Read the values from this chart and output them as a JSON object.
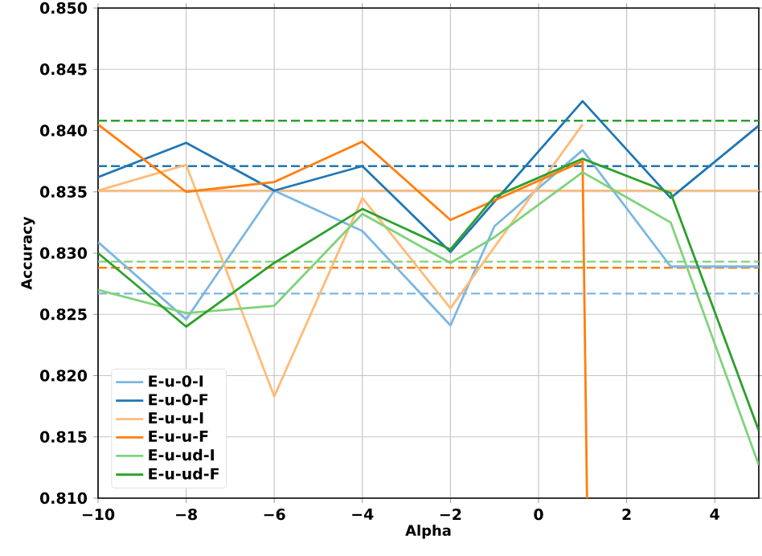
{
  "chart_data": {
    "type": "line",
    "xlabel": "Alpha",
    "ylabel": "Accuracy",
    "xlim": [
      -10,
      5
    ],
    "ylim": [
      0.81,
      0.85
    ],
    "xticks": [
      {
        "value": -10,
        "label": "−10"
      },
      {
        "value": -8,
        "label": "−8"
      },
      {
        "value": -6,
        "label": "−6"
      },
      {
        "value": -4,
        "label": "−4"
      },
      {
        "value": -2,
        "label": "−2"
      },
      0,
      2,
      4
    ],
    "yticks": [
      {
        "value": 0.81,
        "label": "0.810"
      },
      {
        "value": 0.815,
        "label": "0.815"
      },
      {
        "value": 0.82,
        "label": "0.820"
      },
      {
        "value": 0.825,
        "label": "0.825"
      },
      {
        "value": 0.83,
        "label": "0.830"
      },
      {
        "value": 0.835,
        "label": "0.835"
      },
      {
        "value": 0.84,
        "label": "0.840"
      },
      {
        "value": 0.845,
        "label": "0.845"
      },
      {
        "value": 0.85,
        "label": "0.850"
      }
    ],
    "grid": true,
    "legend": "bottom left",
    "marker": "none",
    "line_style": "solid",
    "series": [
      {
        "name": "E-u-0-I",
        "color": "#7cb7e3",
        "x": [
          -10,
          -8,
          -6,
          -4,
          -2,
          -1,
          1,
          3,
          5
        ],
        "values": [
          0.8309,
          0.8246,
          0.8351,
          0.8318,
          0.8241,
          0.8322,
          0.8384,
          0.8289,
          0.8289
        ]
      },
      {
        "name": "E-u-0-F",
        "color": "#1f77b4",
        "x": [
          -10,
          -8,
          -6,
          -4,
          -2,
          1,
          3,
          5
        ],
        "values": [
          0.8362,
          0.839,
          0.8351,
          0.8371,
          0.8301,
          0.8424,
          0.8345,
          0.8404
        ]
      },
      {
        "name": "E-u-u-I",
        "color": "#ffbb78",
        "x": [
          -10,
          -8,
          -6,
          -4,
          -2,
          1
        ],
        "values": [
          0.8351,
          0.8372,
          0.8183,
          0.8345,
          0.8255,
          0.8405
        ]
      },
      {
        "name": "E-u-u-F",
        "color": "#ff7f0e",
        "x": [
          -10,
          -8,
          -6,
          -4,
          -2,
          1,
          1.1
        ],
        "values": [
          0.8405,
          0.835,
          0.8358,
          0.8391,
          0.8327,
          0.8375,
          0.81
        ]
      },
      {
        "name": "E-u-ud-I",
        "color": "#7fd37a",
        "x": [
          -10,
          -8,
          -6,
          -4,
          -2,
          -1,
          1,
          3,
          5
        ],
        "values": [
          0.827,
          0.8251,
          0.8257,
          0.8332,
          0.8292,
          0.8313,
          0.8366,
          0.8325,
          0.8127
        ]
      },
      {
        "name": "E-u-ud-F",
        "color": "#2ca02c",
        "x": [
          -10,
          -8,
          -6,
          -4,
          -2,
          -1,
          1,
          3,
          5
        ],
        "values": [
          0.83,
          0.824,
          0.8292,
          0.8336,
          0.8303,
          0.8346,
          0.8377,
          0.8349,
          0.8155
        ]
      }
    ],
    "ref_lines": [
      {
        "axis": "y",
        "value": 0.8408,
        "color": "#2ca02c",
        "line_style": "dashed"
      },
      {
        "axis": "y",
        "value": 0.8371,
        "color": "#1f77b4",
        "line_style": "dashed"
      },
      {
        "axis": "y",
        "value": 0.8351,
        "color": "#ffbb78",
        "line_style": "solid"
      },
      {
        "axis": "y",
        "value": 0.8293,
        "color": "#7fd37a",
        "line_style": "dashed"
      },
      {
        "axis": "y",
        "value": 0.8288,
        "color": "#ff7f0e",
        "line_style": "dashed"
      },
      {
        "axis": "y",
        "value": 0.8267,
        "color": "#7cb7e3",
        "line_style": "dashed"
      }
    ]
  }
}
